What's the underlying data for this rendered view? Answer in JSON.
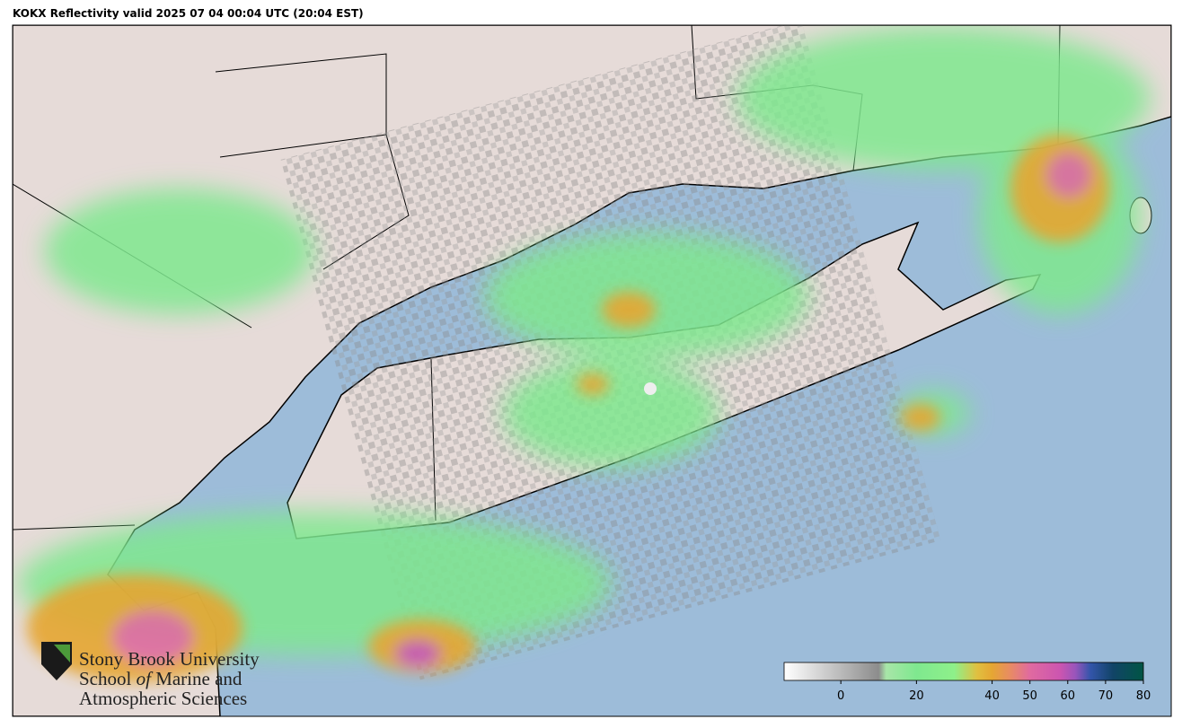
{
  "header": {
    "title": "KOKX Reflectivity valid 2025 07 04 00:04 UTC (20:04 EST)"
  },
  "logo": {
    "line1": "Stony Brook University",
    "line2a": "School",
    "line2b": "of",
    "line2c": "Marine and",
    "line3": "Atmospheric Sciences"
  },
  "colorbar": {
    "range": [
      -15,
      80
    ],
    "ticks": [
      0,
      20,
      40,
      50,
      60,
      70,
      80
    ],
    "stops": [
      [
        -15,
        "#ffffff"
      ],
      [
        10,
        "#8c8c8c"
      ],
      [
        12,
        "#a8e6a8"
      ],
      [
        20,
        "#7fe88f"
      ],
      [
        30,
        "#8ef08a"
      ],
      [
        36,
        "#e0c040"
      ],
      [
        40,
        "#e6a633"
      ],
      [
        45,
        "#e88a66"
      ],
      [
        50,
        "#e06aa0"
      ],
      [
        58,
        "#cc55b0"
      ],
      [
        62,
        "#9955bb"
      ],
      [
        66,
        "#3355aa"
      ],
      [
        72,
        "#114466"
      ],
      [
        80,
        "#005544"
      ]
    ]
  }
}
